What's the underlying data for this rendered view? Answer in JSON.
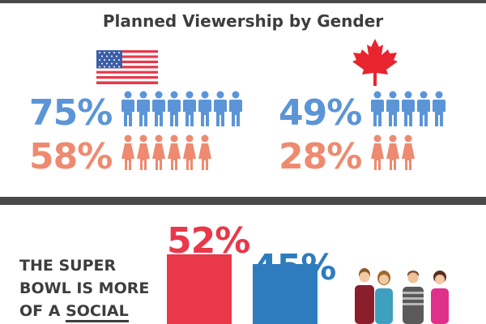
{
  "title": "Planned Viewership by Gender",
  "usa": {
    "male_pct": "75%",
    "female_pct": "58%",
    "flag_icon": "usa-flag-icon"
  },
  "canada": {
    "male_pct": "49%",
    "female_pct": "28%",
    "flag_icon": "maple-leaf-icon"
  },
  "social": {
    "line1": "THE SUPER",
    "line2": "BOWL IS MORE",
    "line3_prefix": "OF A ",
    "line3_underlined": "SOCIAL",
    "pct_a": "52%",
    "pct_b": "45%"
  },
  "colors": {
    "male_blue": "#5b95d7",
    "female_salmon": "#ee8a70",
    "bar_red": "#e8384a",
    "bar_blue": "#2e7cbd",
    "dark": "#3d3d3d"
  },
  "chart_data": {
    "type": "bar",
    "categories": [
      "",
      ""
    ],
    "values": [
      52,
      45
    ],
    "ylim": [
      0,
      100
    ]
  }
}
